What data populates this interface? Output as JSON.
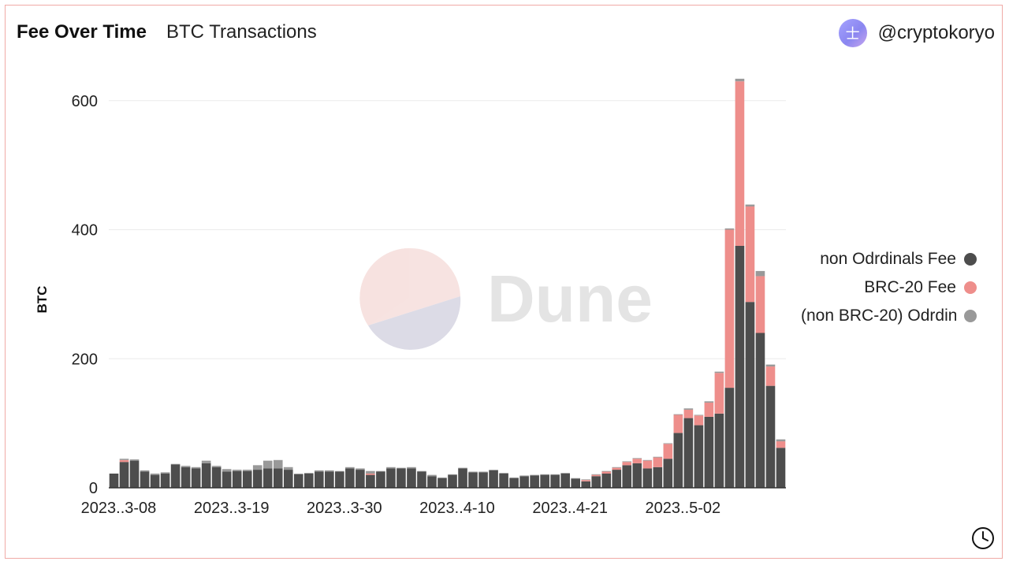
{
  "header": {
    "title": "Fee Over Time",
    "subtitle": "BTC Transactions",
    "user_handle": "@cryptokoryo",
    "avatar_glyph": "士"
  },
  "watermark": {
    "text": "Dune"
  },
  "colors": {
    "non_ordinals": "#4d4d4d",
    "brc20": "#ee8e8b",
    "non_brc20_ordinals": "#999999",
    "grid": "#ececec",
    "frame": "#f0aaa6"
  },
  "chart_data": {
    "type": "bar",
    "stacked": true,
    "title": "Fee Over Time",
    "subtitle": "BTC Transactions",
    "xlabel": "",
    "ylabel": "BTC",
    "ylim": [
      0,
      640
    ],
    "yticks": [
      0,
      200,
      400,
      600
    ],
    "xtick_labels": [
      {
        "index": 0,
        "label": "2023..3-08"
      },
      {
        "index": 11,
        "label": "2023..3-19"
      },
      {
        "index": 22,
        "label": "2023..3-30"
      },
      {
        "index": 33,
        "label": "2023..4-10"
      },
      {
        "index": 44,
        "label": "2023..4-21"
      },
      {
        "index": 55,
        "label": "2023..5-02"
      }
    ],
    "grid": true,
    "legend_position": "right",
    "series": [
      {
        "name": "non Odrdinals Fee",
        "color": "#4d4d4d",
        "values": [
          22,
          40,
          42,
          25,
          20,
          22,
          36,
          32,
          30,
          38,
          32,
          25,
          26,
          26,
          28,
          30,
          30,
          28,
          21,
          22,
          25,
          25,
          25,
          30,
          28,
          20,
          25,
          30,
          30,
          30,
          25,
          18,
          15,
          20,
          30,
          24,
          24,
          27,
          22,
          15,
          18,
          19,
          20,
          20,
          22,
          14,
          10,
          18,
          22,
          28,
          35,
          38,
          30,
          32,
          45,
          85,
          108,
          97,
          110,
          115,
          155,
          375,
          288,
          240,
          158,
          62
        ]
      },
      {
        "name": "BRC-20 Fee",
        "color": "#ee8e8b",
        "values": [
          0,
          3,
          0,
          0,
          0,
          0,
          0,
          0,
          0,
          0,
          0,
          0,
          0,
          0,
          0,
          0,
          0,
          0,
          0,
          0,
          0,
          0,
          0,
          0,
          0,
          2,
          0,
          0,
          0,
          0,
          0,
          0,
          0,
          0,
          0,
          0,
          0,
          0,
          0,
          0,
          0,
          0,
          0,
          0,
          0,
          0,
          2,
          2,
          3,
          3,
          5,
          7,
          12,
          15,
          23,
          28,
          13,
          15,
          22,
          63,
          245,
          255,
          148,
          88,
          30,
          10
        ]
      },
      {
        "name": "(non BRC-20) Odrdinals Fee",
        "color": "#999999",
        "values": [
          0,
          2,
          2,
          2,
          2,
          2,
          1,
          2,
          2,
          4,
          2,
          4,
          2,
          2,
          7,
          12,
          13,
          4,
          1,
          1,
          2,
          2,
          1,
          2,
          2,
          4,
          1,
          2,
          1,
          2,
          1,
          2,
          1,
          1,
          1,
          1,
          1,
          1,
          1,
          1,
          1,
          1,
          1,
          1,
          1,
          1,
          1,
          1,
          1,
          1,
          1,
          1,
          1,
          1,
          1,
          1,
          2,
          1,
          2,
          2,
          2,
          4,
          3,
          8,
          3,
          3
        ]
      }
    ]
  }
}
